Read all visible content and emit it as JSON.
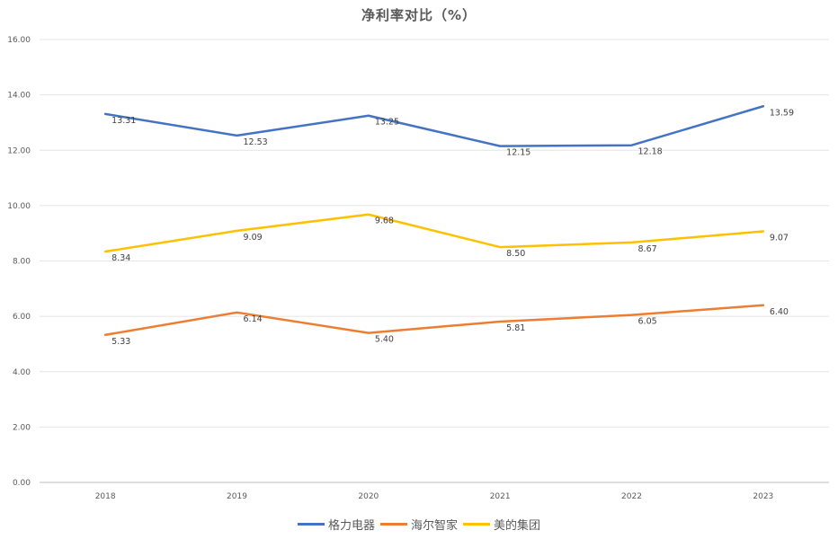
{
  "chart_data": {
    "type": "line",
    "title": "净利率对比（%）",
    "categories": [
      "2018",
      "2019",
      "2020",
      "2021",
      "2022",
      "2023"
    ],
    "ylim": [
      0,
      16
    ],
    "yticks": [
      "0.00",
      "2.00",
      "4.00",
      "6.00",
      "8.00",
      "10.00",
      "12.00",
      "14.00",
      "16.00"
    ],
    "grid": true,
    "legend_position": "bottom",
    "series": [
      {
        "name": "格力电器",
        "color": "#4472C4",
        "values": [
          13.31,
          12.53,
          13.25,
          12.15,
          12.18,
          13.59
        ],
        "labels": [
          "13.31",
          "12.53",
          "13.25",
          "12.15",
          "12.18",
          "13.59"
        ]
      },
      {
        "name": "海尔智家",
        "color": "#ED7D31",
        "values": [
          5.33,
          6.14,
          5.4,
          5.81,
          6.05,
          6.4
        ],
        "labels": [
          "5.33",
          "6.14",
          "5.40",
          "5.81",
          "6.05",
          "6.40"
        ]
      },
      {
        "name": "美的集团",
        "color": "#FFC000",
        "values": [
          8.34,
          9.09,
          9.68,
          8.5,
          8.67,
          9.07
        ],
        "labels": [
          "8.34",
          "9.09",
          "9.68",
          "8.50",
          "8.67",
          "9.07"
        ]
      }
    ]
  }
}
